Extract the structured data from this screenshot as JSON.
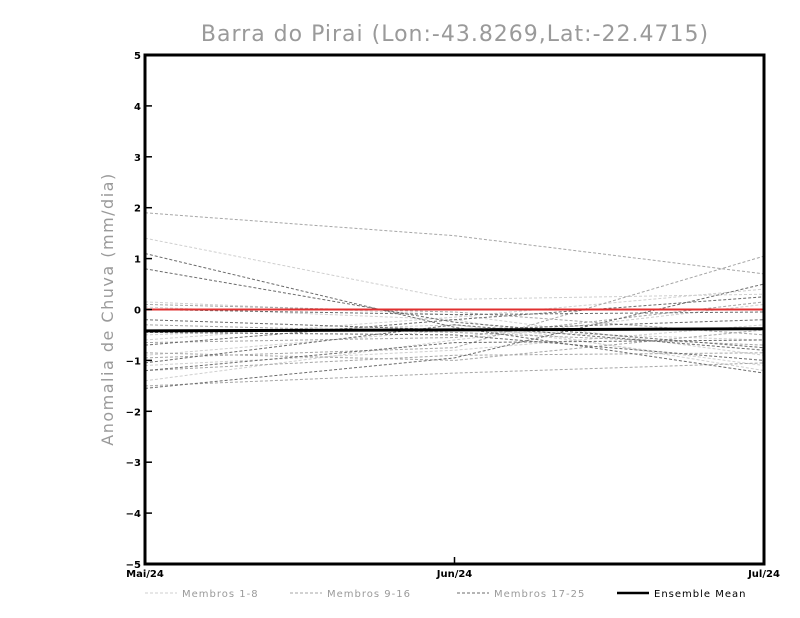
{
  "chart_data": {
    "type": "line",
    "title": "Barra do Pirai (Lon:-43.8269,Lat:-22.4715)",
    "xlabel": "",
    "ylabel": "Anomalia de Chuva (mm/dia)",
    "categories": [
      "Mai/24",
      "Jun/24",
      "Jul/24"
    ],
    "ylim": [
      -5,
      5
    ],
    "yticks": [
      -5,
      -4,
      -3,
      -2,
      -1,
      0,
      1,
      2,
      3,
      4,
      5
    ],
    "grid": false,
    "reference_line": {
      "value": 0,
      "color": "#e03030"
    },
    "colors": {
      "m1_8": "#cfcfcf",
      "m9_16": "#a6a6a6",
      "m17_25": "#6b6b6b",
      "mean": "#000000"
    },
    "legend": [
      {
        "label": "Membros 1-8",
        "group": "m1_8"
      },
      {
        "label": "Membros 9-16",
        "group": "m9_16"
      },
      {
        "label": "Membros 17-25",
        "group": "m17_25"
      },
      {
        "label": "Ensemble Mean",
        "group": "mean"
      }
    ],
    "series": [
      {
        "name": "Membro 1",
        "group": "m1_8",
        "values": [
          1.4,
          0.2,
          0.3
        ]
      },
      {
        "name": "Membro 2",
        "group": "m1_8",
        "values": [
          0.15,
          -0.1,
          -0.9
        ]
      },
      {
        "name": "Membro 3",
        "group": "m1_8",
        "values": [
          -0.5,
          -0.3,
          -1.1
        ]
      },
      {
        "name": "Membro 4",
        "group": "m1_8",
        "values": [
          -1.4,
          -0.6,
          0.1
        ]
      },
      {
        "name": "Membro 5",
        "group": "m1_8",
        "values": [
          -0.9,
          -0.4,
          -0.6
        ]
      },
      {
        "name": "Membro 6",
        "group": "m1_8",
        "values": [
          0.05,
          -0.2,
          -1.2
        ]
      },
      {
        "name": "Membro 7",
        "group": "m1_8",
        "values": [
          -1.1,
          -0.8,
          -0.3
        ]
      },
      {
        "name": "Membro 8",
        "group": "m1_8",
        "values": [
          -0.6,
          -0.15,
          0.4
        ]
      },
      {
        "name": "Membro 9",
        "group": "m9_16",
        "values": [
          1.9,
          1.45,
          0.7
        ]
      },
      {
        "name": "Membro 10",
        "group": "m9_16",
        "values": [
          -1.5,
          -1.25,
          -1.05
        ]
      },
      {
        "name": "Membro 11",
        "group": "m9_16",
        "values": [
          -0.95,
          -0.75,
          1.05
        ]
      },
      {
        "name": "Membro 12",
        "group": "m9_16",
        "values": [
          -0.3,
          -0.45,
          -0.7
        ]
      },
      {
        "name": "Membro 13",
        "group": "m9_16",
        "values": [
          0.1,
          -0.05,
          -0.5
        ]
      },
      {
        "name": "Membro 14",
        "group": "m9_16",
        "values": [
          -1.2,
          -0.9,
          -0.85
        ]
      },
      {
        "name": "Membro 15",
        "group": "m9_16",
        "values": [
          -0.65,
          -0.55,
          0.15
        ]
      },
      {
        "name": "Membro 16",
        "group": "m9_16",
        "values": [
          -0.85,
          -1.0,
          -0.4
        ]
      },
      {
        "name": "Membro 17",
        "group": "m17_25",
        "values": [
          1.1,
          -0.35,
          -1.25
        ]
      },
      {
        "name": "Membro 18",
        "group": "m17_25",
        "values": [
          0.8,
          -0.25,
          -0.75
        ]
      },
      {
        "name": "Membro 19",
        "group": "m17_25",
        "values": [
          -1.55,
          -0.95,
          0.5
        ]
      },
      {
        "name": "Membro 20",
        "group": "m17_25",
        "values": [
          -1.05,
          -0.3,
          -0.8
        ]
      },
      {
        "name": "Membro 21",
        "group": "m17_25",
        "values": [
          -0.7,
          -0.2,
          0.25
        ]
      },
      {
        "name": "Membro 22",
        "group": "m17_25",
        "values": [
          -0.45,
          -0.5,
          -1.0
        ]
      },
      {
        "name": "Membro 23",
        "group": "m17_25",
        "values": [
          -0.2,
          -0.4,
          -0.2
        ]
      },
      {
        "name": "Membro 24",
        "group": "m17_25",
        "values": [
          -1.2,
          -0.65,
          -0.6
        ]
      },
      {
        "name": "Membro 25",
        "group": "m17_25",
        "values": [
          0.0,
          -0.1,
          -0.05
        ]
      },
      {
        "name": "Ensemble Mean",
        "group": "mean",
        "values": [
          -0.42,
          -0.4,
          -0.38
        ]
      }
    ]
  }
}
